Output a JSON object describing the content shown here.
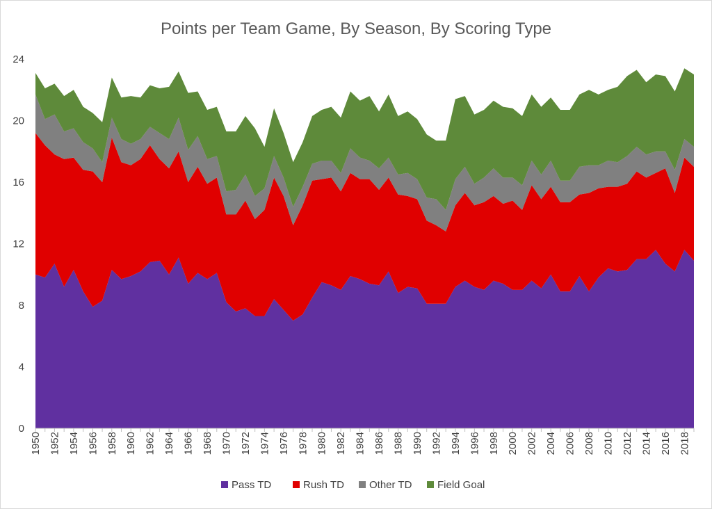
{
  "chart_data": {
    "type": "area",
    "stacked": true,
    "title": "Points per Team Game, By Season,  By Scoring  Type",
    "xlabel": "",
    "ylabel": "",
    "ylim": [
      0,
      24
    ],
    "yticks": [
      0,
      4,
      8,
      12,
      16,
      20,
      24
    ],
    "x": [
      1950,
      1951,
      1952,
      1953,
      1954,
      1955,
      1956,
      1957,
      1958,
      1959,
      1960,
      1961,
      1962,
      1963,
      1964,
      1965,
      1966,
      1967,
      1968,
      1969,
      1970,
      1971,
      1972,
      1973,
      1974,
      1975,
      1976,
      1977,
      1978,
      1979,
      1980,
      1981,
      1982,
      1983,
      1984,
      1985,
      1986,
      1987,
      1988,
      1989,
      1990,
      1991,
      1992,
      1993,
      1994,
      1995,
      1996,
      1997,
      1998,
      1999,
      2000,
      2001,
      2002,
      2003,
      2004,
      2005,
      2006,
      2007,
      2008,
      2009,
      2010,
      2011,
      2012,
      2013,
      2014,
      2015,
      2016,
      2017,
      2018,
      2019
    ],
    "xtick_labels": [
      "1950",
      "1952",
      "1954",
      "1956",
      "1958",
      "1960",
      "1962",
      "1964",
      "1966",
      "1968",
      "1970",
      "1972",
      "1974",
      "1976",
      "1978",
      "1980",
      "1982",
      "1984",
      "1986",
      "1988",
      "1990",
      "1992",
      "1994",
      "1996",
      "1998",
      "2000",
      "2002",
      "2004",
      "2006",
      "2008",
      "2010",
      "2012",
      "2014",
      "2016",
      "2018"
    ],
    "grid": false,
    "legend_position": "bottom",
    "series": [
      {
        "name": "Pass TD",
        "color": "#6030a0",
        "values": [
          10.0,
          9.8,
          10.7,
          9.2,
          10.3,
          8.9,
          7.9,
          8.3,
          10.3,
          9.7,
          9.9,
          10.2,
          10.8,
          10.9,
          10.0,
          11.1,
          9.4,
          10.1,
          9.7,
          10.1,
          8.2,
          7.6,
          7.8,
          7.3,
          7.3,
          8.4,
          7.7,
          7.0,
          7.4,
          8.5,
          9.5,
          9.3,
          9.0,
          9.9,
          9.7,
          9.4,
          9.3,
          10.2,
          8.8,
          9.2,
          9.1,
          8.1,
          8.1,
          8.1,
          9.2,
          9.6,
          9.2,
          9.0,
          9.6,
          9.4,
          9.0,
          9.0,
          9.6,
          9.1,
          10.0,
          8.9,
          8.9,
          9.9,
          8.9,
          9.8,
          10.4,
          10.2,
          10.3,
          11.0,
          11.0,
          11.6,
          10.7,
          10.2,
          11.6,
          10.9
        ]
      },
      {
        "name": "Rush TD",
        "color": "#e00000",
        "values": [
          9.2,
          8.6,
          7.1,
          8.3,
          7.3,
          7.9,
          8.8,
          7.7,
          8.6,
          7.6,
          7.2,
          7.3,
          7.6,
          6.6,
          6.9,
          6.9,
          6.6,
          6.9,
          6.2,
          6.2,
          5.7,
          6.3,
          7.0,
          6.3,
          6.9,
          7.9,
          7.4,
          6.2,
          7.1,
          7.6,
          6.7,
          7.0,
          6.4,
          6.7,
          6.5,
          6.8,
          6.2,
          6.1,
          6.4,
          5.9,
          5.8,
          5.4,
          5.1,
          4.7,
          5.3,
          5.7,
          5.3,
          5.7,
          5.5,
          5.2,
          5.8,
          5.2,
          6.2,
          5.8,
          5.7,
          5.8,
          5.8,
          5.3,
          6.4,
          5.8,
          5.3,
          5.5,
          5.6,
          5.7,
          5.3,
          5.0,
          6.2,
          5.1,
          6.0,
          6.1
        ]
      },
      {
        "name": "Other TD",
        "color": "#808080",
        "values": [
          2.5,
          1.7,
          2.6,
          1.8,
          1.9,
          1.8,
          1.5,
          1.3,
          1.3,
          1.5,
          1.4,
          1.3,
          1.2,
          1.7,
          1.9,
          2.2,
          2.1,
          2.0,
          1.6,
          1.4,
          1.5,
          1.6,
          1.7,
          1.5,
          1.4,
          1.4,
          1.2,
          1.2,
          1.2,
          1.1,
          1.2,
          1.1,
          1.2,
          1.6,
          1.4,
          1.2,
          1.4,
          1.3,
          1.3,
          1.5,
          1.3,
          1.5,
          1.7,
          1.4,
          1.7,
          1.7,
          1.4,
          1.6,
          1.8,
          1.7,
          1.5,
          1.6,
          1.6,
          1.6,
          1.7,
          1.4,
          1.4,
          1.8,
          1.8,
          1.5,
          1.7,
          1.6,
          1.8,
          1.6,
          1.5,
          1.4,
          1.1,
          1.5,
          1.2,
          1.3
        ]
      },
      {
        "name": "Field Goal",
        "color": "#5e8a3a",
        "values": [
          1.4,
          2.0,
          2.0,
          2.3,
          2.5,
          2.3,
          2.3,
          2.6,
          2.6,
          2.7,
          3.1,
          2.7,
          2.7,
          2.9,
          3.4,
          3.0,
          3.7,
          2.9,
          3.2,
          3.2,
          3.9,
          3.8,
          3.8,
          4.4,
          2.7,
          3.1,
          2.9,
          2.9,
          2.9,
          3.1,
          3.3,
          3.5,
          3.6,
          3.7,
          3.7,
          4.2,
          3.7,
          4.1,
          3.8,
          4.0,
          3.9,
          4.1,
          3.8,
          4.5,
          5.2,
          4.6,
          4.5,
          4.4,
          4.4,
          4.6,
          4.5,
          4.5,
          4.3,
          4.4,
          4.1,
          4.6,
          4.6,
          4.7,
          4.9,
          4.6,
          4.6,
          4.9,
          5.2,
          5.0,
          4.7,
          5.0,
          4.9,
          5.1,
          4.6,
          4.7
        ]
      }
    ]
  }
}
